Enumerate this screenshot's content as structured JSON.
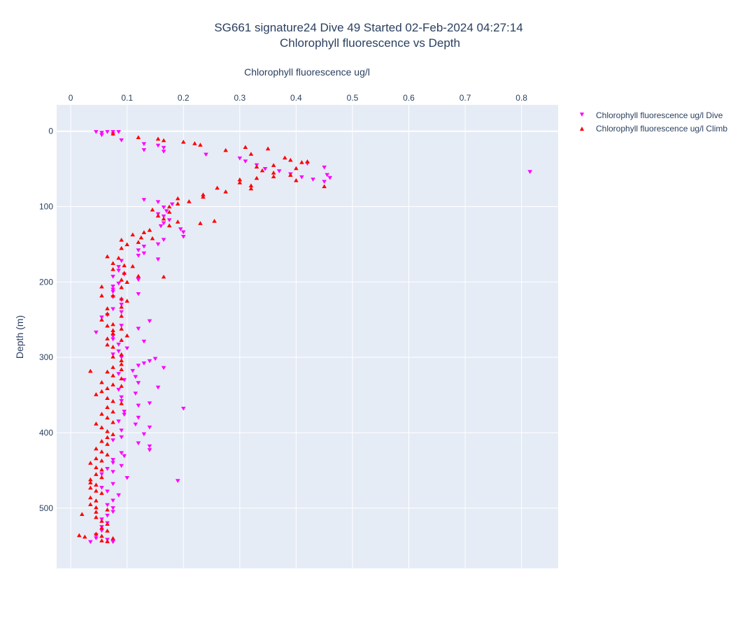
{
  "chart_data": {
    "type": "scatter",
    "title_line1": "SG661 signature24 Dive 49 Started 02-Feb-2024 04:27:14",
    "title_line2": "Chlorophyll fluorescence vs Depth",
    "xlabel": "Chlorophyll fluorescence ug/l",
    "ylabel": "Depth (m)",
    "xlim": [
      -0.025,
      0.865
    ],
    "ylim": [
      580,
      -35
    ],
    "x_axis_position": "top",
    "y_reversed": true,
    "grid": true,
    "legend_position": "top-right",
    "x_ticks": [
      "0",
      "0.1",
      "0.2",
      "0.3",
      "0.4",
      "0.5",
      "0.6",
      "0.7",
      "0.8"
    ],
    "x_tick_values": [
      0,
      0.1,
      0.2,
      0.3,
      0.4,
      0.5,
      0.6,
      0.7,
      0.8
    ],
    "y_ticks": [
      "0",
      "100",
      "200",
      "300",
      "400",
      "500"
    ],
    "y_tick_values": [
      0,
      100,
      200,
      300,
      400,
      500
    ],
    "colors": {
      "dive": "#ff00ff",
      "climb": "#ff0000",
      "plot_bg": "#e5ecf6",
      "grid": "#ffffff"
    },
    "series": [
      {
        "name": "Chlorophyll fluorescence ug/l Dive",
        "marker": "triangle-down",
        "points": [
          [
            0.045,
            1
          ],
          [
            0.055,
            2
          ],
          [
            0.065,
            1
          ],
          [
            0.075,
            1
          ],
          [
            0.085,
            1
          ],
          [
            0.055,
            5
          ],
          [
            0.075,
            4
          ],
          [
            0.09,
            12
          ],
          [
            0.13,
            17
          ],
          [
            0.155,
            19
          ],
          [
            0.165,
            22
          ],
          [
            0.13,
            25
          ],
          [
            0.165,
            27
          ],
          [
            0.24,
            31
          ],
          [
            0.3,
            36
          ],
          [
            0.31,
            40
          ],
          [
            0.33,
            45
          ],
          [
            0.345,
            50
          ],
          [
            0.37,
            53
          ],
          [
            0.39,
            57
          ],
          [
            0.41,
            61
          ],
          [
            0.43,
            64
          ],
          [
            0.45,
            67
          ],
          [
            0.46,
            62
          ],
          [
            0.455,
            58
          ],
          [
            0.45,
            48
          ],
          [
            0.42,
            43
          ],
          [
            0.815,
            54
          ],
          [
            0.13,
            91
          ],
          [
            0.155,
            94
          ],
          [
            0.18,
            97
          ],
          [
            0.165,
            101
          ],
          [
            0.17,
            106
          ],
          [
            0.155,
            110
          ],
          [
            0.165,
            113
          ],
          [
            0.175,
            118
          ],
          [
            0.165,
            122
          ],
          [
            0.16,
            126
          ],
          [
            0.195,
            130
          ],
          [
            0.2,
            134
          ],
          [
            0.2,
            140
          ],
          [
            0.165,
            144
          ],
          [
            0.155,
            150
          ],
          [
            0.13,
            153
          ],
          [
            0.12,
            158
          ],
          [
            0.13,
            162
          ],
          [
            0.12,
            165
          ],
          [
            0.155,
            170
          ],
          [
            0.09,
            172
          ],
          [
            0.085,
            180
          ],
          [
            0.085,
            185
          ],
          [
            0.095,
            190
          ],
          [
            0.075,
            193
          ],
          [
            0.12,
            197
          ],
          [
            0.085,
            202
          ],
          [
            0.075,
            206
          ],
          [
            0.075,
            210
          ],
          [
            0.075,
            213
          ],
          [
            0.12,
            216
          ],
          [
            0.075,
            220
          ],
          [
            0.09,
            224
          ],
          [
            0.09,
            230
          ],
          [
            0.075,
            236
          ],
          [
            0.09,
            240
          ],
          [
            0.065,
            244
          ],
          [
            0.055,
            247
          ],
          [
            0.14,
            252
          ],
          [
            0.09,
            258
          ],
          [
            0.12,
            262
          ],
          [
            0.045,
            267
          ],
          [
            0.075,
            272
          ],
          [
            0.075,
            276
          ],
          [
            0.13,
            279
          ],
          [
            0.085,
            283
          ],
          [
            0.1,
            288
          ],
          [
            0.085,
            292
          ],
          [
            0.075,
            296
          ],
          [
            0.09,
            300
          ],
          [
            0.15,
            302
          ],
          [
            0.14,
            305
          ],
          [
            0.13,
            308
          ],
          [
            0.12,
            311
          ],
          [
            0.165,
            314
          ],
          [
            0.11,
            318
          ],
          [
            0.085,
            322
          ],
          [
            0.115,
            326
          ],
          [
            0.095,
            330
          ],
          [
            0.12,
            334
          ],
          [
            0.155,
            340
          ],
          [
            0.085,
            343
          ],
          [
            0.115,
            348
          ],
          [
            0.09,
            353
          ],
          [
            0.09,
            358
          ],
          [
            0.14,
            361
          ],
          [
            0.12,
            364
          ],
          [
            0.2,
            368
          ],
          [
            0.095,
            372
          ],
          [
            0.095,
            376
          ],
          [
            0.12,
            380
          ],
          [
            0.085,
            385
          ],
          [
            0.115,
            389
          ],
          [
            0.14,
            393
          ],
          [
            0.09,
            397
          ],
          [
            0.13,
            402
          ],
          [
            0.09,
            406
          ],
          [
            0.075,
            410
          ],
          [
            0.12,
            414
          ],
          [
            0.14,
            418
          ],
          [
            0.14,
            423
          ],
          [
            0.09,
            427
          ],
          [
            0.095,
            431
          ],
          [
            0.075,
            436
          ],
          [
            0.075,
            440
          ],
          [
            0.09,
            444
          ],
          [
            0.065,
            448
          ],
          [
            0.075,
            452
          ],
          [
            0.055,
            455
          ],
          [
            0.1,
            460
          ],
          [
            0.19,
            464
          ],
          [
            0.075,
            468
          ],
          [
            0.055,
            473
          ],
          [
            0.065,
            478
          ],
          [
            0.085,
            483
          ],
          [
            0.075,
            490
          ],
          [
            0.065,
            496
          ],
          [
            0.075,
            500
          ],
          [
            0.075,
            505
          ],
          [
            0.065,
            510
          ],
          [
            0.055,
            515
          ],
          [
            0.065,
            520
          ],
          [
            0.055,
            525
          ],
          [
            0.055,
            530
          ],
          [
            0.045,
            536
          ],
          [
            0.045,
            540
          ],
          [
            0.035,
            545
          ],
          [
            0.075,
            545
          ],
          [
            0.065,
            542
          ]
        ]
      },
      {
        "name": "Chlorophyll fluorescence ug/l Climb",
        "marker": "triangle-up",
        "points": [
          [
            0.075,
            3
          ],
          [
            0.12,
            8
          ],
          [
            0.155,
            10
          ],
          [
            0.165,
            12
          ],
          [
            0.2,
            14
          ],
          [
            0.22,
            16
          ],
          [
            0.23,
            18
          ],
          [
            0.275,
            25
          ],
          [
            0.31,
            21
          ],
          [
            0.32,
            30
          ],
          [
            0.35,
            23
          ],
          [
            0.38,
            35
          ],
          [
            0.39,
            38
          ],
          [
            0.36,
            45
          ],
          [
            0.41,
            41
          ],
          [
            0.42,
            40
          ],
          [
            0.33,
            47
          ],
          [
            0.34,
            52
          ],
          [
            0.36,
            55
          ],
          [
            0.3,
            64
          ],
          [
            0.3,
            68
          ],
          [
            0.32,
            72
          ],
          [
            0.32,
            76
          ],
          [
            0.275,
            80
          ],
          [
            0.26,
            75
          ],
          [
            0.33,
            62
          ],
          [
            0.36,
            60
          ],
          [
            0.4,
            65
          ],
          [
            0.45,
            73
          ],
          [
            0.39,
            58
          ],
          [
            0.4,
            49
          ],
          [
            0.235,
            84
          ],
          [
            0.235,
            87
          ],
          [
            0.19,
            89
          ],
          [
            0.21,
            93
          ],
          [
            0.19,
            96
          ],
          [
            0.175,
            100
          ],
          [
            0.145,
            104
          ],
          [
            0.175,
            107
          ],
          [
            0.155,
            112
          ],
          [
            0.165,
            116
          ],
          [
            0.19,
            120
          ],
          [
            0.23,
            122
          ],
          [
            0.255,
            119
          ],
          [
            0.175,
            125
          ],
          [
            0.14,
            131
          ],
          [
            0.13,
            134
          ],
          [
            0.11,
            137
          ],
          [
            0.125,
            141
          ],
          [
            0.09,
            144
          ],
          [
            0.145,
            142
          ],
          [
            0.12,
            147
          ],
          [
            0.1,
            150
          ],
          [
            0.09,
            155
          ],
          [
            0.065,
            166
          ],
          [
            0.085,
            168
          ],
          [
            0.075,
            175
          ],
          [
            0.095,
            178
          ],
          [
            0.11,
            179
          ],
          [
            0.075,
            183
          ],
          [
            0.095,
            188
          ],
          [
            0.165,
            193
          ],
          [
            0.12,
            192
          ],
          [
            0.09,
            197
          ],
          [
            0.1,
            200
          ],
          [
            0.055,
            206
          ],
          [
            0.09,
            207
          ],
          [
            0.055,
            218
          ],
          [
            0.075,
            218
          ],
          [
            0.09,
            222
          ],
          [
            0.1,
            225
          ],
          [
            0.065,
            235
          ],
          [
            0.09,
            233
          ],
          [
            0.065,
            242
          ],
          [
            0.09,
            245
          ],
          [
            0.055,
            250
          ],
          [
            0.065,
            258
          ],
          [
            0.075,
            256
          ],
          [
            0.09,
            262
          ],
          [
            0.075,
            264
          ],
          [
            0.075,
            268
          ],
          [
            0.1,
            271
          ],
          [
            0.065,
            275
          ],
          [
            0.09,
            277
          ],
          [
            0.065,
            283
          ],
          [
            0.075,
            286
          ],
          [
            0.09,
            296
          ],
          [
            0.075,
            299
          ],
          [
            0.09,
            304
          ],
          [
            0.09,
            309
          ],
          [
            0.075,
            313
          ],
          [
            0.09,
            316
          ],
          [
            0.065,
            319
          ],
          [
            0.035,
            318
          ],
          [
            0.075,
            324
          ],
          [
            0.09,
            328
          ],
          [
            0.055,
            333
          ],
          [
            0.075,
            336
          ],
          [
            0.09,
            338
          ],
          [
            0.065,
            341
          ],
          [
            0.045,
            349
          ],
          [
            0.055,
            345
          ],
          [
            0.065,
            354
          ],
          [
            0.075,
            358
          ],
          [
            0.09,
            361
          ],
          [
            0.065,
            366
          ],
          [
            0.075,
            372
          ],
          [
            0.055,
            375
          ],
          [
            0.065,
            380
          ],
          [
            0.075,
            386
          ],
          [
            0.045,
            388
          ],
          [
            0.055,
            393
          ],
          [
            0.065,
            398
          ],
          [
            0.075,
            402
          ],
          [
            0.065,
            406
          ],
          [
            0.055,
            411
          ],
          [
            0.065,
            415
          ],
          [
            0.045,
            421
          ],
          [
            0.055,
            425
          ],
          [
            0.065,
            429
          ],
          [
            0.045,
            434
          ],
          [
            0.055,
            437
          ],
          [
            0.035,
            440
          ],
          [
            0.045,
            446
          ],
          [
            0.055,
            449
          ],
          [
            0.045,
            455
          ],
          [
            0.055,
            459
          ],
          [
            0.035,
            462
          ],
          [
            0.035,
            466
          ],
          [
            0.045,
            469
          ],
          [
            0.035,
            473
          ],
          [
            0.045,
            477
          ],
          [
            0.055,
            480
          ],
          [
            0.035,
            486
          ],
          [
            0.045,
            490
          ],
          [
            0.035,
            495
          ],
          [
            0.045,
            499
          ],
          [
            0.065,
            502
          ],
          [
            0.045,
            505
          ],
          [
            0.02,
            508
          ],
          [
            0.045,
            512
          ],
          [
            0.055,
            517
          ],
          [
            0.065,
            521
          ],
          [
            0.055,
            526
          ],
          [
            0.065,
            530
          ],
          [
            0.045,
            534
          ],
          [
            0.015,
            536
          ],
          [
            0.025,
            538
          ],
          [
            0.055,
            537
          ],
          [
            0.075,
            540
          ],
          [
            0.065,
            544
          ],
          [
            0.055,
            543
          ]
        ]
      }
    ]
  }
}
